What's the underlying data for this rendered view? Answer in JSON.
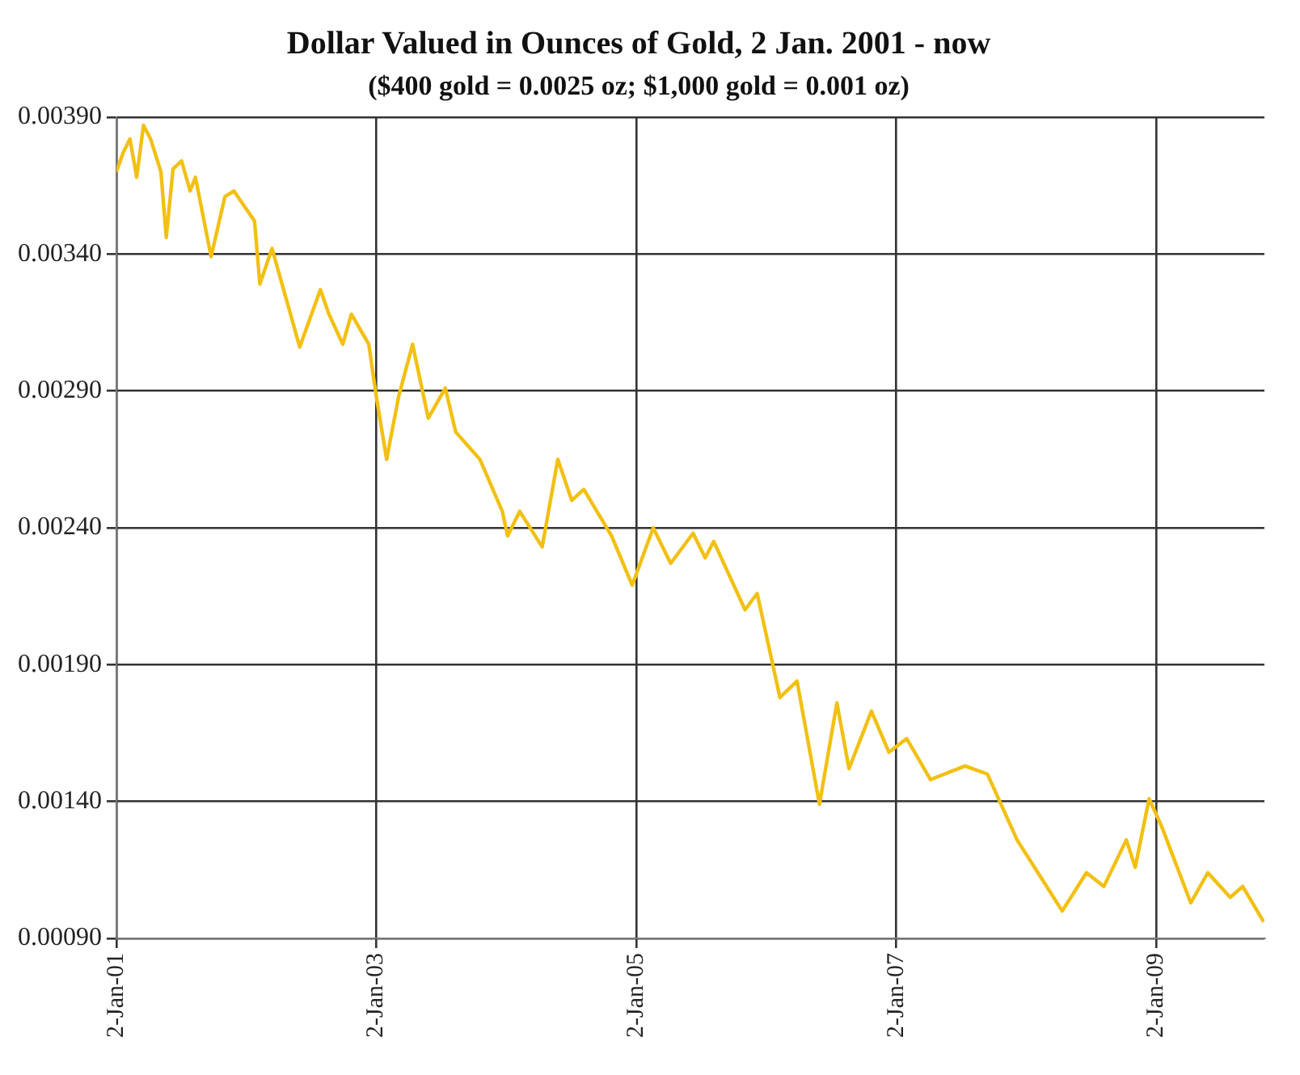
{
  "chart_data": {
    "type": "line",
    "title": "Dollar Valued in Ounces of Gold, 2 Jan. 2001 - now",
    "subtitle": "($400 gold = 0.0025 oz; $1,000 gold = 0.001 oz)",
    "x": [
      "2001-01-02",
      "2001-01-21",
      "2001-02-09",
      "2001-02-28",
      "2001-03-19",
      "2001-04-08",
      "2001-05-07",
      "2001-05-22",
      "2001-06-10",
      "2001-07-04",
      "2001-07-28",
      "2001-08-12",
      "2001-09-25",
      "2001-11-03",
      "2001-11-28",
      "2002-01-25",
      "2002-02-09",
      "2002-03-15",
      "2002-06-01",
      "2002-07-29",
      "2002-08-22",
      "2002-09-30",
      "2002-10-24",
      "2002-12-12",
      "2003-01-02",
      "2003-01-31",
      "2003-03-06",
      "2003-04-14",
      "2003-05-28",
      "2003-07-15",
      "2003-08-13",
      "2003-10-20",
      "2003-12-22",
      "2004-01-06",
      "2004-02-09",
      "2004-04-12",
      "2004-05-26",
      "2004-07-04",
      "2004-08-07",
      "2004-10-24",
      "2004-12-21",
      "2005-02-18",
      "2005-04-08",
      "2005-06-10",
      "2005-07-14",
      "2005-08-07",
      "2005-11-03",
      "2005-12-07",
      "2006-02-09",
      "2006-03-29",
      "2006-05-31",
      "2006-07-19",
      "2006-08-22",
      "2006-10-24",
      "2006-12-12",
      "2007-01-31",
      "2007-04-08",
      "2007-07-14",
      "2007-09-15",
      "2007-12-07",
      "2008-01-25",
      "2008-04-12",
      "2008-06-19",
      "2008-08-07",
      "2008-10-09",
      "2008-11-03",
      "2008-12-12",
      "2009-01-16",
      "2009-04-08",
      "2009-05-26",
      "2009-07-28",
      "2009-09-01",
      "2009-10-30"
    ],
    "series": [
      {
        "color": "#f2c012",
        "values": [
          0.0037,
          0.00377,
          0.00382,
          0.00368,
          0.00387,
          0.00382,
          0.0037,
          0.00346,
          0.00371,
          0.00374,
          0.00363,
          0.00368,
          0.00339,
          0.00361,
          0.00363,
          0.00352,
          0.00329,
          0.00342,
          0.00306,
          0.00327,
          0.00318,
          0.00307,
          0.00318,
          0.00307,
          0.00288,
          0.00265,
          0.00288,
          0.00307,
          0.0028,
          0.00291,
          0.00275,
          0.00265,
          0.00246,
          0.00237,
          0.00246,
          0.00233,
          0.00265,
          0.0025,
          0.00254,
          0.00237,
          0.00219,
          0.0024,
          0.00227,
          0.00238,
          0.00229,
          0.00235,
          0.0021,
          0.00216,
          0.00178,
          0.00184,
          0.00139,
          0.00176,
          0.00152,
          0.00173,
          0.00158,
          0.00163,
          0.00148,
          0.00153,
          0.0015,
          0.00126,
          0.00116,
          0.001,
          0.00114,
          0.00109,
          0.00126,
          0.00116,
          0.00141,
          0.00131,
          0.00103,
          0.00114,
          0.00105,
          0.00109,
          0.00096
        ]
      }
    ],
    "xlim": [
      "2001-01-02",
      "2009-11-01"
    ],
    "xticks": [
      {
        "value": "2001-01-02",
        "label": "2-Jan-01"
      },
      {
        "value": "2003-01-02",
        "label": "2-Jan-03"
      },
      {
        "value": "2005-01-02",
        "label": "2-Jan-05"
      },
      {
        "value": "2007-01-02",
        "label": "2-Jan-07"
      },
      {
        "value": "2009-01-02",
        "label": "2-Jan-09"
      }
    ],
    "ylim": [
      0.0009,
      0.0039
    ],
    "yticks": [
      {
        "value": 0.0009,
        "label": "0.00090"
      },
      {
        "value": 0.0014,
        "label": "0.00140"
      },
      {
        "value": 0.0019,
        "label": "0.00190"
      },
      {
        "value": 0.0024,
        "label": "0.00240"
      },
      {
        "value": 0.0029,
        "label": "0.00290"
      },
      {
        "value": 0.0034,
        "label": "0.00340"
      },
      {
        "value": 0.0039,
        "label": "0.00390"
      }
    ],
    "grid": true,
    "marker": "none",
    "line_style": "solid",
    "legend": false
  }
}
